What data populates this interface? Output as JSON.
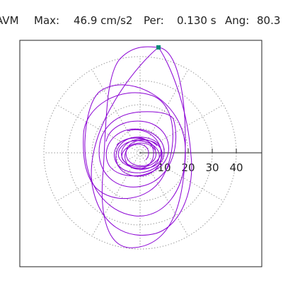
{
  "header": {
    "component_label": "AVM",
    "max_label": "Max:",
    "max_value": "46.9 cm/s2",
    "period_label": "Per:",
    "period_value": "0.130 s",
    "angle_label": "Ang:",
    "angle_value": "80.3"
  },
  "plot": {
    "radial_tick_labels": [
      "10",
      "20",
      "30",
      "40"
    ],
    "grid": true,
    "trace_color": "#8a00d4",
    "marker_color": "#008a78",
    "grid_color": "#9a9a9a"
  }
}
